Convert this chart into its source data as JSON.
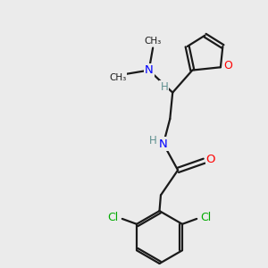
{
  "background_color": "#ebebeb",
  "bond_color": "#1a1a1a",
  "N_color": "#0000ff",
  "O_color": "#ff0000",
  "Cl_color": "#00aa00",
  "H_color": "#5f9090",
  "figsize": [
    3.0,
    3.0
  ],
  "dpi": 100,
  "xlim": [
    0,
    10
  ],
  "ylim": [
    0,
    10
  ]
}
